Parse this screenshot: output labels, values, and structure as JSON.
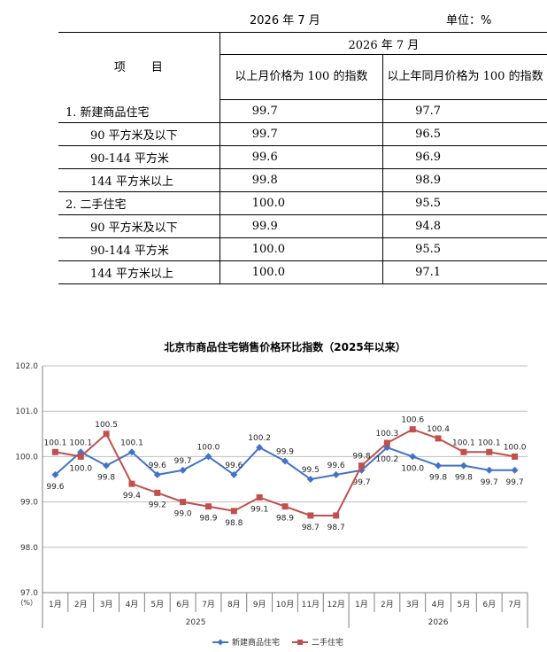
{
  "caption": {
    "date": "2026 年 7 月",
    "unit": "单位：%"
  },
  "table": {
    "item_header": "项　　目",
    "period_header": "2026 年 7 月",
    "col_mom": "以上月价格为 100 的指数",
    "col_yoy": "以上年同月价格为 100 的指数",
    "rows": [
      {
        "label": "1. 新建商品住宅",
        "mom": "99.7",
        "yoy": "97.7"
      },
      {
        "label": "90 平方米及以下",
        "mom": "99.7",
        "yoy": "96.5"
      },
      {
        "label": "90-144 平方米",
        "mom": "99.6",
        "yoy": "96.9"
      },
      {
        "label": "144 平方米以上",
        "mom": "99.8",
        "yoy": "98.9"
      },
      {
        "label": "2. 二手住宅",
        "mom": "100.0",
        "yoy": "95.5"
      },
      {
        "label": "90 平方米及以下",
        "mom": "99.9",
        "yoy": "94.8"
      },
      {
        "label": "90-144 平方米",
        "mom": "100.0",
        "yoy": "95.5"
      },
      {
        "label": "144 平方米以上",
        "mom": "100.0",
        "yoy": "97.1"
      }
    ]
  },
  "chart_data": {
    "type": "line",
    "title": "北京市商品住宅销售价格环比指数（2025年以来）",
    "ylabel": "（%）",
    "ylim": [
      97.0,
      102.0
    ],
    "yticks": [
      "97.0",
      "98.0",
      "99.0",
      "100.0",
      "101.0",
      "102.0"
    ],
    "categories": [
      "1月",
      "2月",
      "3月",
      "4月",
      "5月",
      "6月",
      "7月",
      "8月",
      "9月",
      "10月",
      "11月",
      "12月",
      "1月",
      "2月",
      "3月",
      "4月",
      "5月",
      "6月",
      "7月"
    ],
    "year_groups": [
      {
        "label": "2025",
        "count": 12
      },
      {
        "label": "2026",
        "count": 7
      }
    ],
    "series": [
      {
        "name": "新建商品住宅",
        "color": "#4472C4",
        "marker": "diamond",
        "values": [
          99.6,
          100.1,
          99.8,
          100.1,
          99.6,
          99.7,
          100.0,
          99.6,
          100.2,
          99.9,
          99.5,
          99.6,
          99.7,
          100.2,
          100.0,
          99.8,
          99.8,
          99.7,
          99.7
        ]
      },
      {
        "name": "二手住宅",
        "color": "#C0504D",
        "marker": "square",
        "values": [
          100.1,
          100.0,
          100.5,
          99.4,
          99.2,
          99.0,
          98.9,
          98.8,
          99.1,
          98.9,
          98.7,
          98.7,
          99.8,
          100.3,
          100.6,
          100.4,
          100.1,
          100.1,
          100.0
        ]
      }
    ],
    "grid": true,
    "legend": "bottom"
  }
}
